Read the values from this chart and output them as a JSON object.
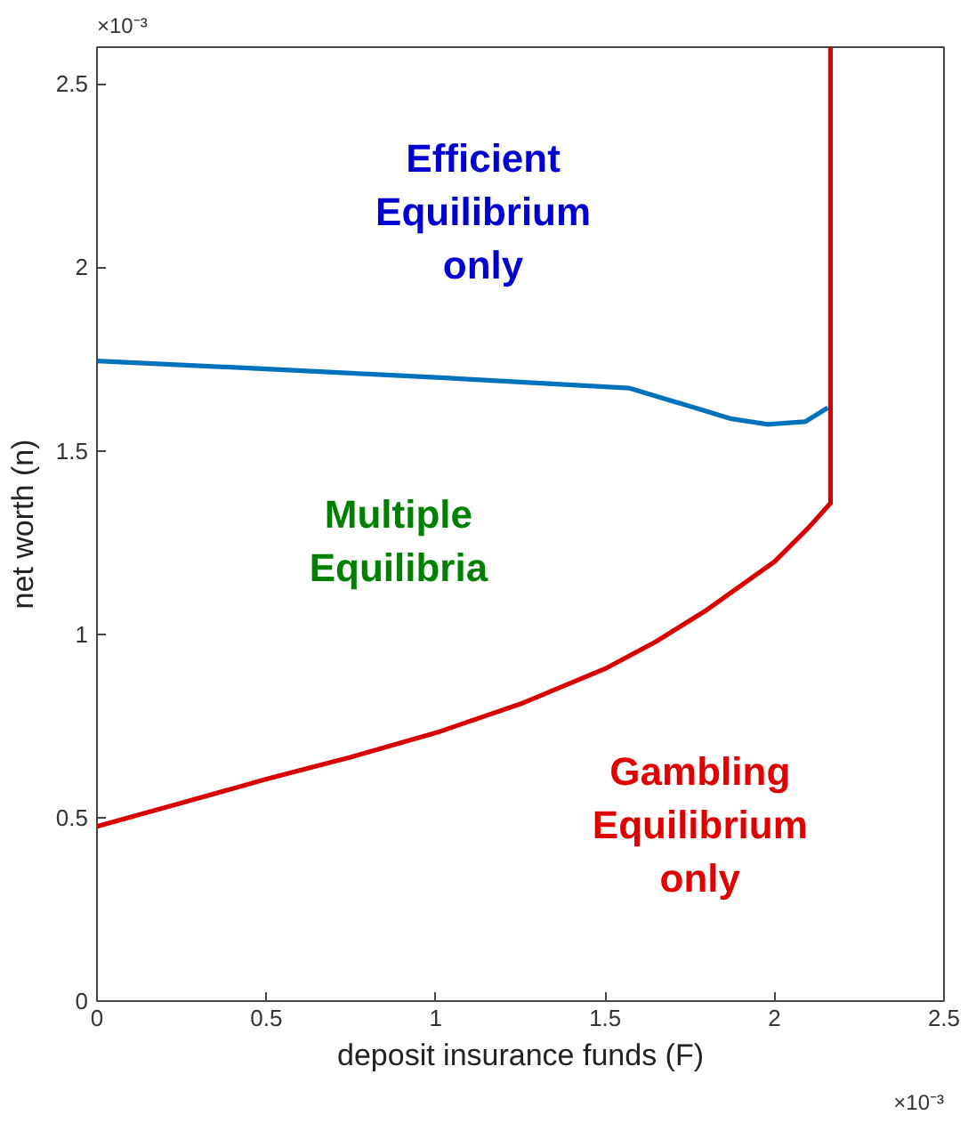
{
  "chart_data": {
    "type": "line",
    "xlabel": "deposit insurance funds (F)",
    "ylabel": "net worth (n)",
    "xlim": [
      0,
      2.5
    ],
    "ylim": [
      0,
      2.6
    ],
    "xticks": [
      0,
      0.5,
      1,
      1.5,
      2,
      2.5
    ],
    "yticks": [
      0,
      0.5,
      1,
      1.5,
      2,
      2.5
    ],
    "grid": false,
    "marker": "none",
    "line_style": "solid",
    "series": [
      {
        "color": "#0072bd",
        "x": [
          0,
          0.5,
          1.0,
          1.57,
          1.765,
          1.873,
          1.98,
          2.09,
          2.157
        ],
        "values": [
          1.745,
          1.723,
          1.7,
          1.671,
          1.617,
          1.587,
          1.572,
          1.579,
          1.617
        ]
      },
      {
        "color": "#d90000",
        "x": [
          0,
          0.25,
          0.5,
          0.75,
          1.0,
          1.25,
          1.5,
          1.65,
          1.8,
          2.0,
          2.1,
          2.165,
          2.165
        ],
        "values": [
          0.476,
          0.54,
          0.605,
          0.665,
          0.731,
          0.81,
          0.906,
          0.98,
          1.066,
          1.198,
          1.29,
          1.357,
          2.6
        ]
      }
    ],
    "annotations": [
      "×10⁻³",
      "×10⁻³",
      "Efficient\nEquilibrium\nonly",
      "Multiple\nEquilibria",
      "Gambling\nEquilibrium\nonly"
    ]
  }
}
